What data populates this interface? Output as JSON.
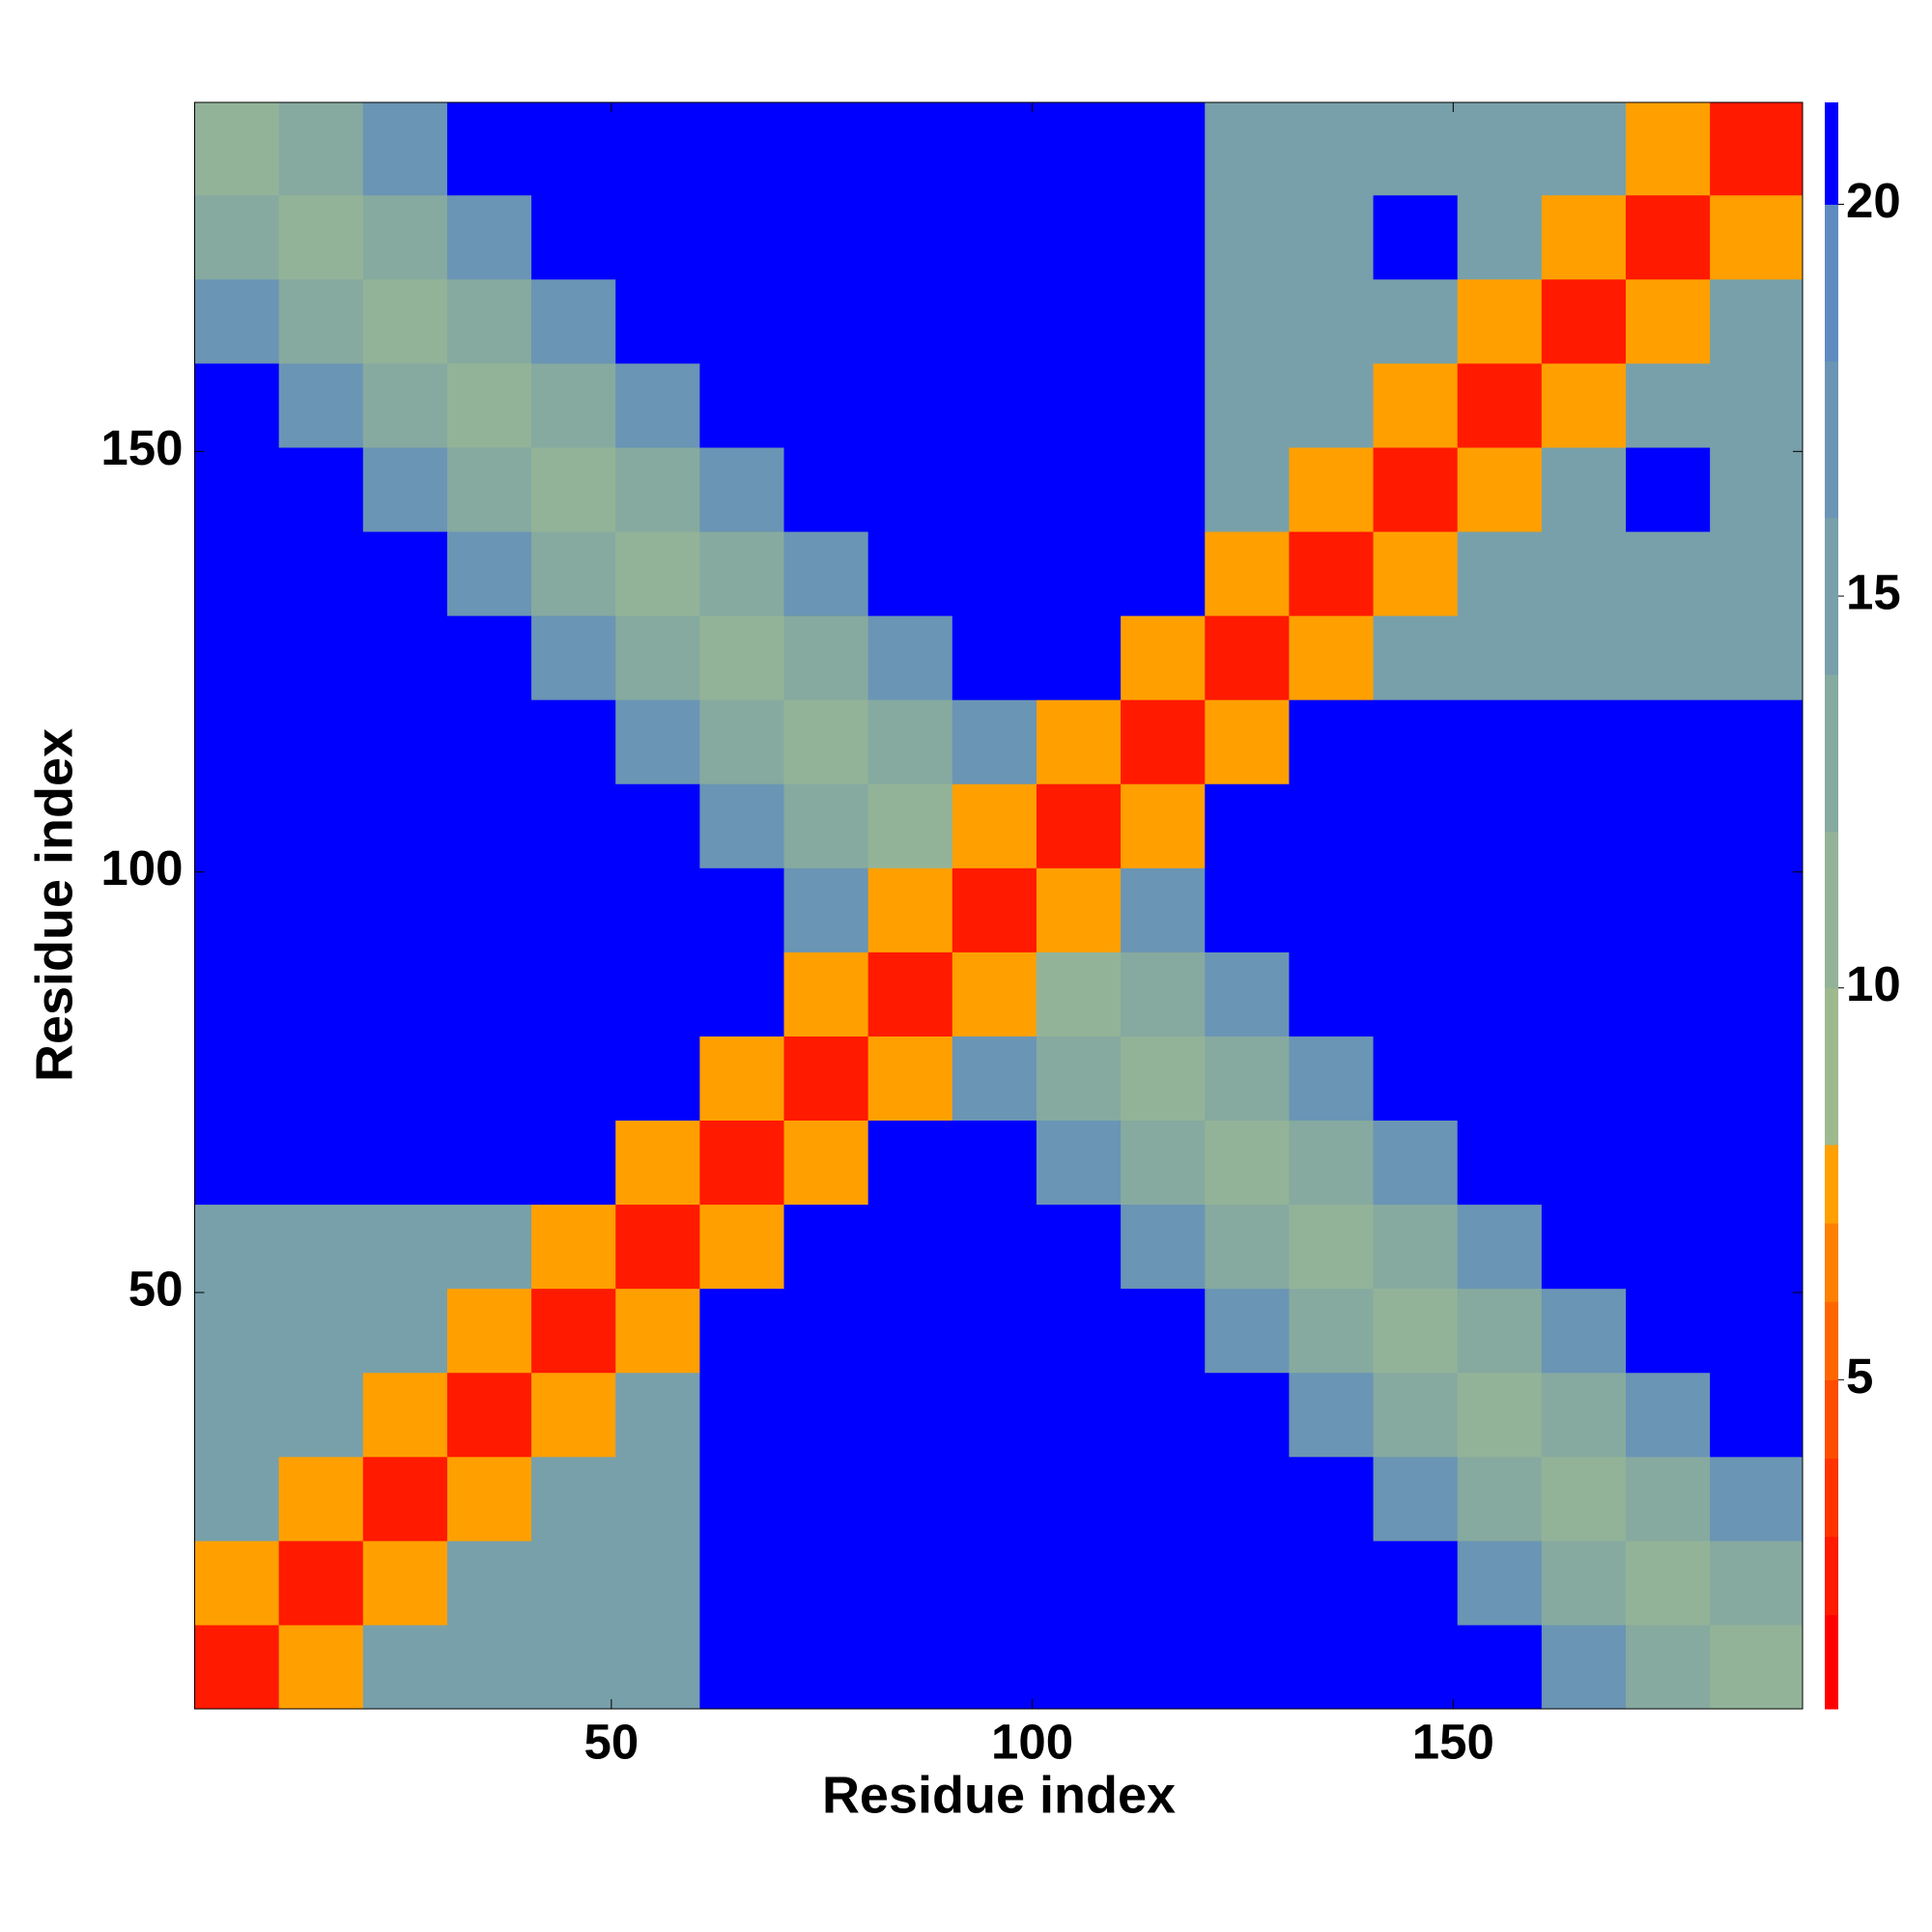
{
  "chart_data": {
    "type": "heatmap",
    "x_label": "Residue index",
    "y_label": "Residue index",
    "xlim": [
      0.5,
      191.5
    ],
    "ylim": [
      0.5,
      191.5
    ],
    "xticks": [
      50,
      100,
      150
    ],
    "yticks": [
      50,
      100,
      150
    ],
    "xbins": [
      0.5,
      10.5,
      20.5,
      30.5,
      40.5,
      50.5,
      60.5,
      70.5,
      80.5,
      90.5,
      100.5,
      110.5,
      120.5,
      130.5,
      140.5,
      150.5,
      160.5,
      170.5,
      180.5,
      191.5
    ],
    "ybins": [
      0.5,
      10.5,
      20.5,
      30.5,
      40.5,
      50.5,
      60.5,
      70.5,
      80.5,
      90.5,
      100.5,
      110.5,
      120.5,
      130.5,
      140.5,
      150.5,
      160.5,
      170.5,
      180.5,
      191.5
    ],
    "z": [
      [
        3,
        8,
        15,
        15,
        15,
        15,
        21,
        21,
        21,
        21,
        21,
        21,
        21,
        21,
        21,
        21,
        17,
        14,
        12
      ],
      [
        8,
        3,
        8,
        15,
        15,
        15,
        21,
        21,
        21,
        21,
        21,
        21,
        21,
        21,
        21,
        17,
        14,
        12,
        14
      ],
      [
        15,
        8,
        3,
        8,
        15,
        15,
        21,
        21,
        21,
        21,
        21,
        21,
        21,
        21,
        17,
        14,
        12,
        14,
        17
      ],
      [
        15,
        15,
        8,
        3,
        8,
        15,
        21,
        21,
        21,
        21,
        21,
        21,
        21,
        17,
        14,
        12,
        14,
        17,
        21
      ],
      [
        15,
        15,
        15,
        8,
        3,
        8,
        21,
        21,
        21,
        21,
        21,
        21,
        17,
        14,
        12,
        14,
        17,
        21,
        21
      ],
      [
        15,
        15,
        15,
        15,
        8,
        3,
        8,
        21,
        21,
        21,
        21,
        17,
        14,
        12,
        14,
        17,
        21,
        21,
        21
      ],
      [
        21,
        21,
        21,
        21,
        21,
        8,
        3,
        8,
        21,
        21,
        17,
        14,
        12,
        14,
        17,
        21,
        21,
        21,
        21
      ],
      [
        21,
        21,
        21,
        21,
        21,
        21,
        8,
        3,
        8,
        17,
        14,
        12,
        14,
        17,
        21,
        21,
        21,
        21,
        21
      ],
      [
        21,
        21,
        21,
        21,
        21,
        21,
        21,
        8,
        3,
        8,
        12,
        14,
        17,
        21,
        21,
        21,
        21,
        21,
        21
      ],
      [
        21,
        21,
        21,
        21,
        21,
        21,
        21,
        17,
        8,
        3,
        8,
        17,
        21,
        21,
        21,
        21,
        21,
        21,
        21
      ],
      [
        21,
        21,
        21,
        21,
        21,
        21,
        17,
        14,
        12,
        8,
        3,
        8,
        21,
        21,
        21,
        21,
        21,
        21,
        21
      ],
      [
        21,
        21,
        21,
        21,
        21,
        17,
        14,
        12,
        14,
        17,
        8,
        3,
        8,
        21,
        21,
        21,
        21,
        21,
        21
      ],
      [
        21,
        21,
        21,
        21,
        17,
        14,
        12,
        14,
        17,
        21,
        21,
        8,
        3,
        8,
        16,
        16,
        16,
        16,
        16
      ],
      [
        21,
        21,
        21,
        17,
        14,
        12,
        14,
        17,
        21,
        21,
        21,
        21,
        8,
        3,
        8,
        16,
        16,
        16,
        16
      ],
      [
        21,
        21,
        17,
        14,
        12,
        14,
        17,
        21,
        21,
        21,
        21,
        21,
        16,
        8,
        3,
        8,
        16,
        21,
        16
      ],
      [
        21,
        17,
        14,
        12,
        14,
        17,
        21,
        21,
        21,
        21,
        21,
        21,
        16,
        16,
        8,
        3,
        8,
        16,
        16
      ],
      [
        17,
        14,
        12,
        14,
        17,
        21,
        21,
        21,
        21,
        21,
        21,
        21,
        16,
        16,
        16,
        8,
        3,
        8,
        16
      ],
      [
        14,
        12,
        14,
        17,
        21,
        21,
        21,
        21,
        21,
        21,
        21,
        21,
        16,
        16,
        21,
        16,
        8,
        3,
        8
      ],
      [
        12,
        14,
        17,
        21,
        21,
        21,
        21,
        21,
        21,
        21,
        21,
        21,
        16,
        16,
        16,
        16,
        16,
        8,
        3
      ]
    ],
    "clim": [
      0.8,
      21.3
    ],
    "levels": [
      0.8,
      2,
      3,
      4,
      5,
      6,
      7,
      8,
      10,
      12,
      14,
      16,
      18,
      20,
      21.3
    ],
    "colors": [
      "#ff0000",
      "#ff1a00",
      "#ff3300",
      "#ff4d00",
      "#ff6600",
      "#ff8000",
      "#ffa000",
      "#9fb98f",
      "#93b398",
      "#86aaa0",
      "#78a0aa",
      "#6a95b4",
      "#5f8cc0",
      "#0000ff"
    ],
    "cticks": [
      5,
      10,
      15,
      20
    ]
  }
}
